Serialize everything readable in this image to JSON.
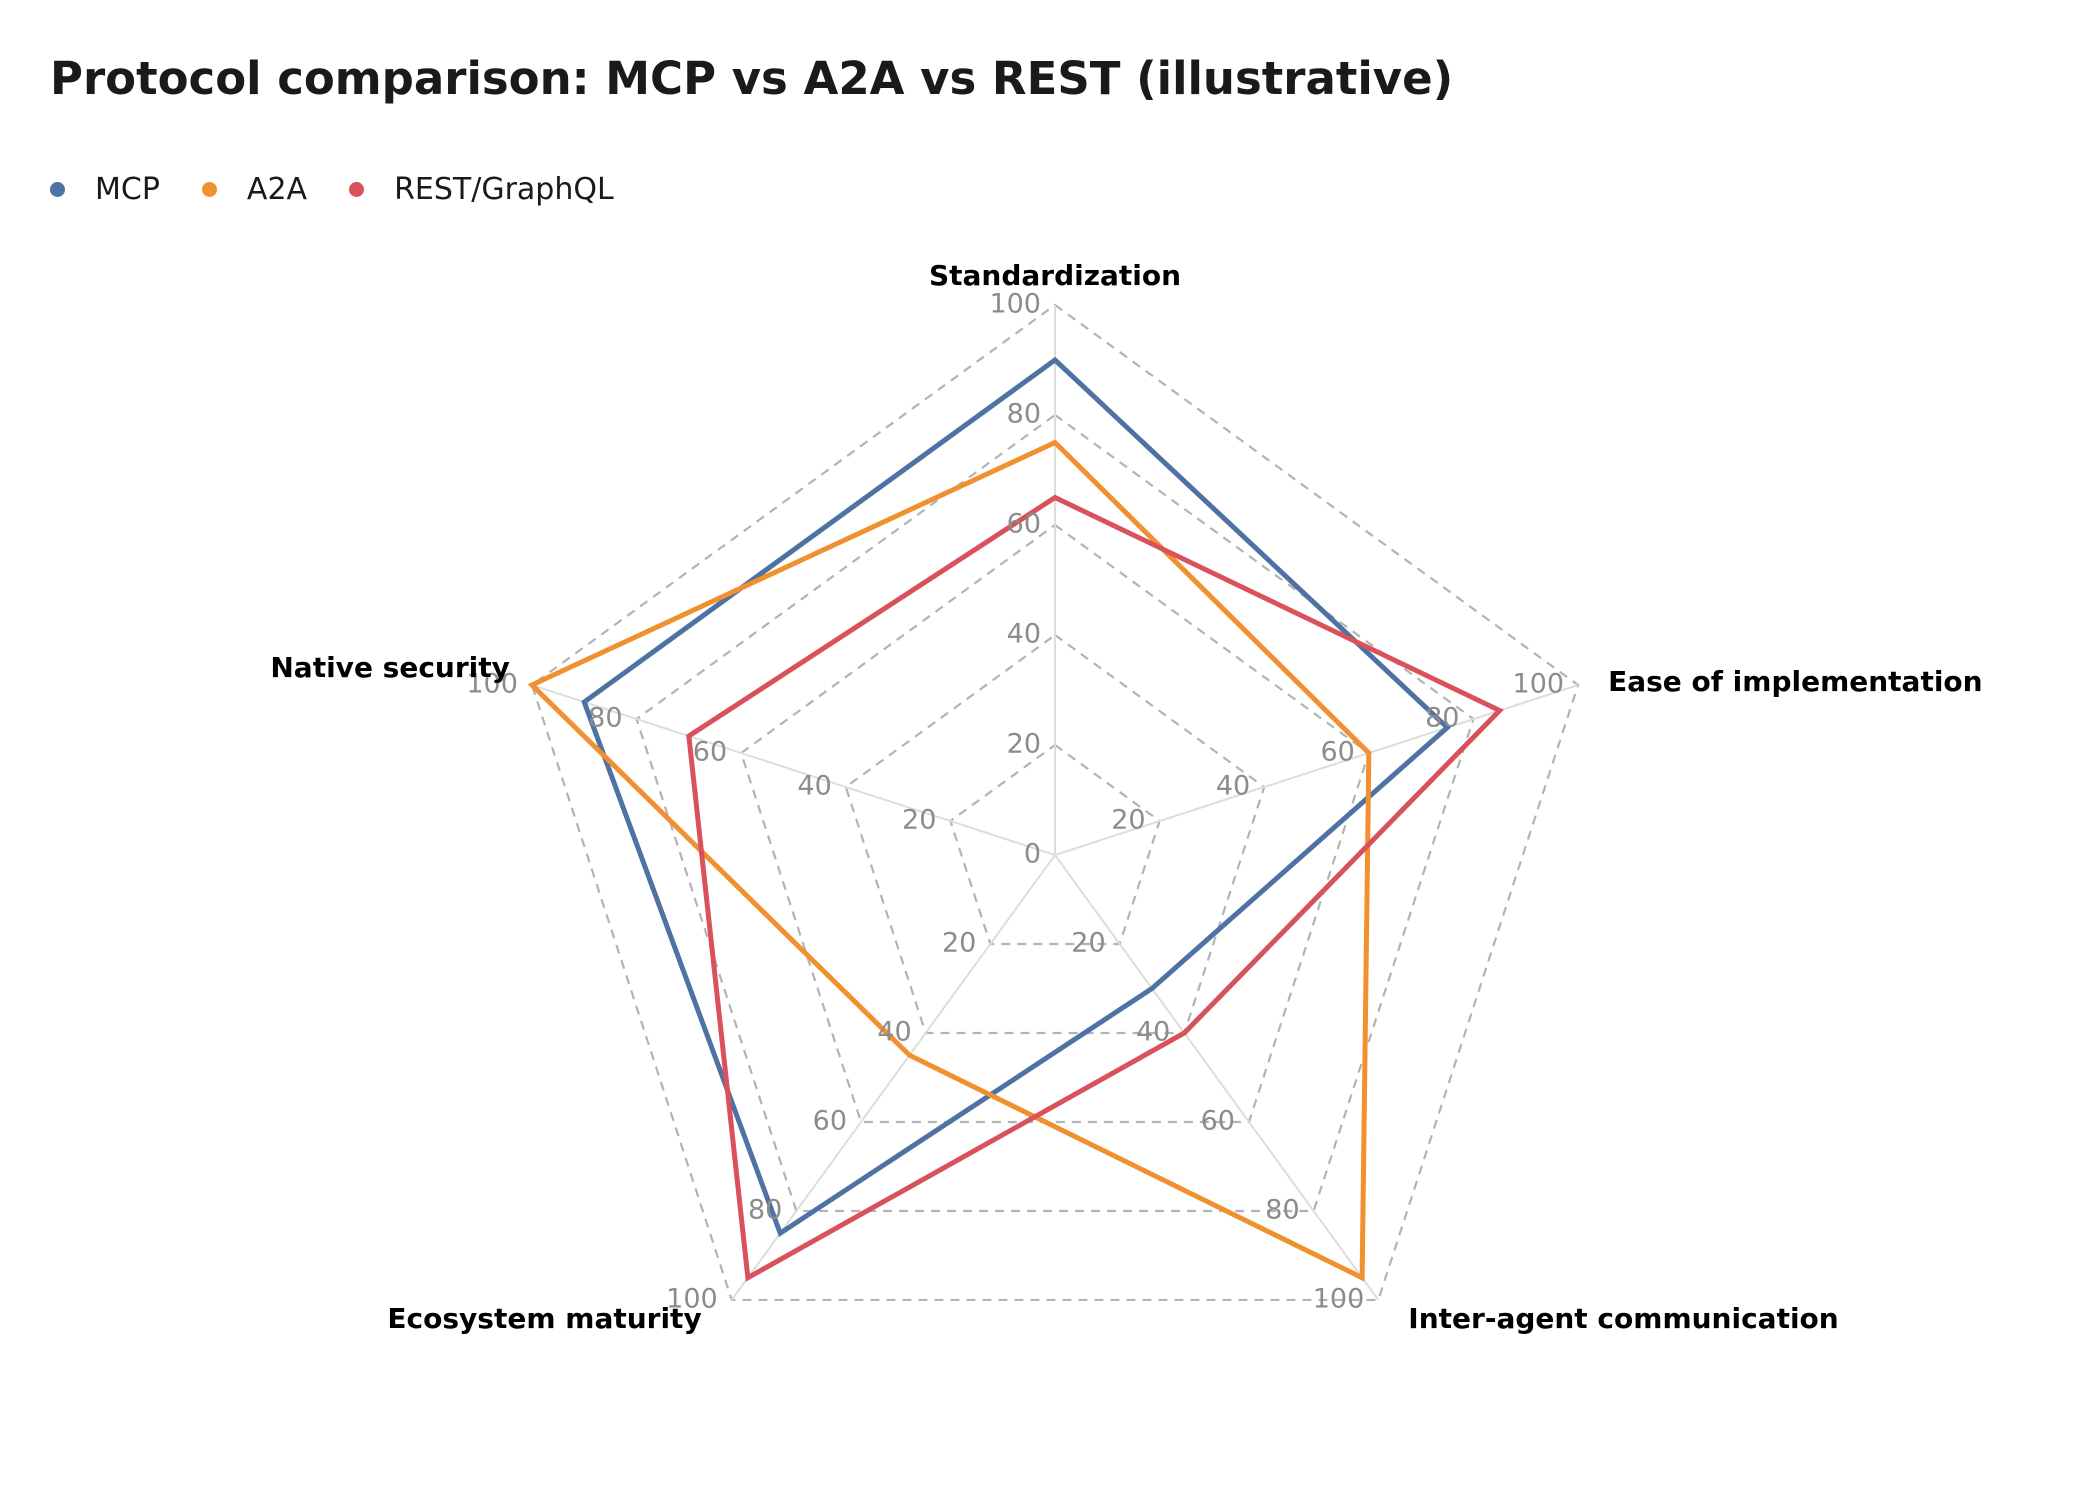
{
  "title": "Protocol comparison: MCP vs A2A vs REST (illustrative)",
  "legend": [
    {
      "label": "MCP",
      "color": "#4e72a3"
    },
    {
      "label": "A2A",
      "color": "#f0902f"
    },
    {
      "label": "REST/GraphQL",
      "color": "#d9515a"
    }
  ],
  "chart_data": {
    "type": "radar",
    "title": "Protocol comparison: MCP vs A2A vs REST (illustrative)",
    "axes": [
      "Standardization",
      "Ease of implementation",
      "Inter-agent communication",
      "Ecosystem maturity",
      "Native security"
    ],
    "range": [
      0,
      100
    ],
    "ticks": [
      0,
      20,
      40,
      60,
      80,
      100
    ],
    "tick_labels": [
      "0",
      "20",
      "40",
      "60",
      "80",
      "100"
    ],
    "grid": true,
    "legend_position": "top-left",
    "series": [
      {
        "name": "MCP",
        "color": "#4e72a3",
        "values": [
          90,
          75,
          30,
          85,
          90
        ]
      },
      {
        "name": "A2A",
        "color": "#f0902f",
        "values": [
          75,
          60,
          95,
          45,
          100
        ]
      },
      {
        "name": "REST/GraphQL",
        "color": "#d9515a",
        "values": [
          65,
          85,
          40,
          95,
          70
        ]
      }
    ]
  }
}
